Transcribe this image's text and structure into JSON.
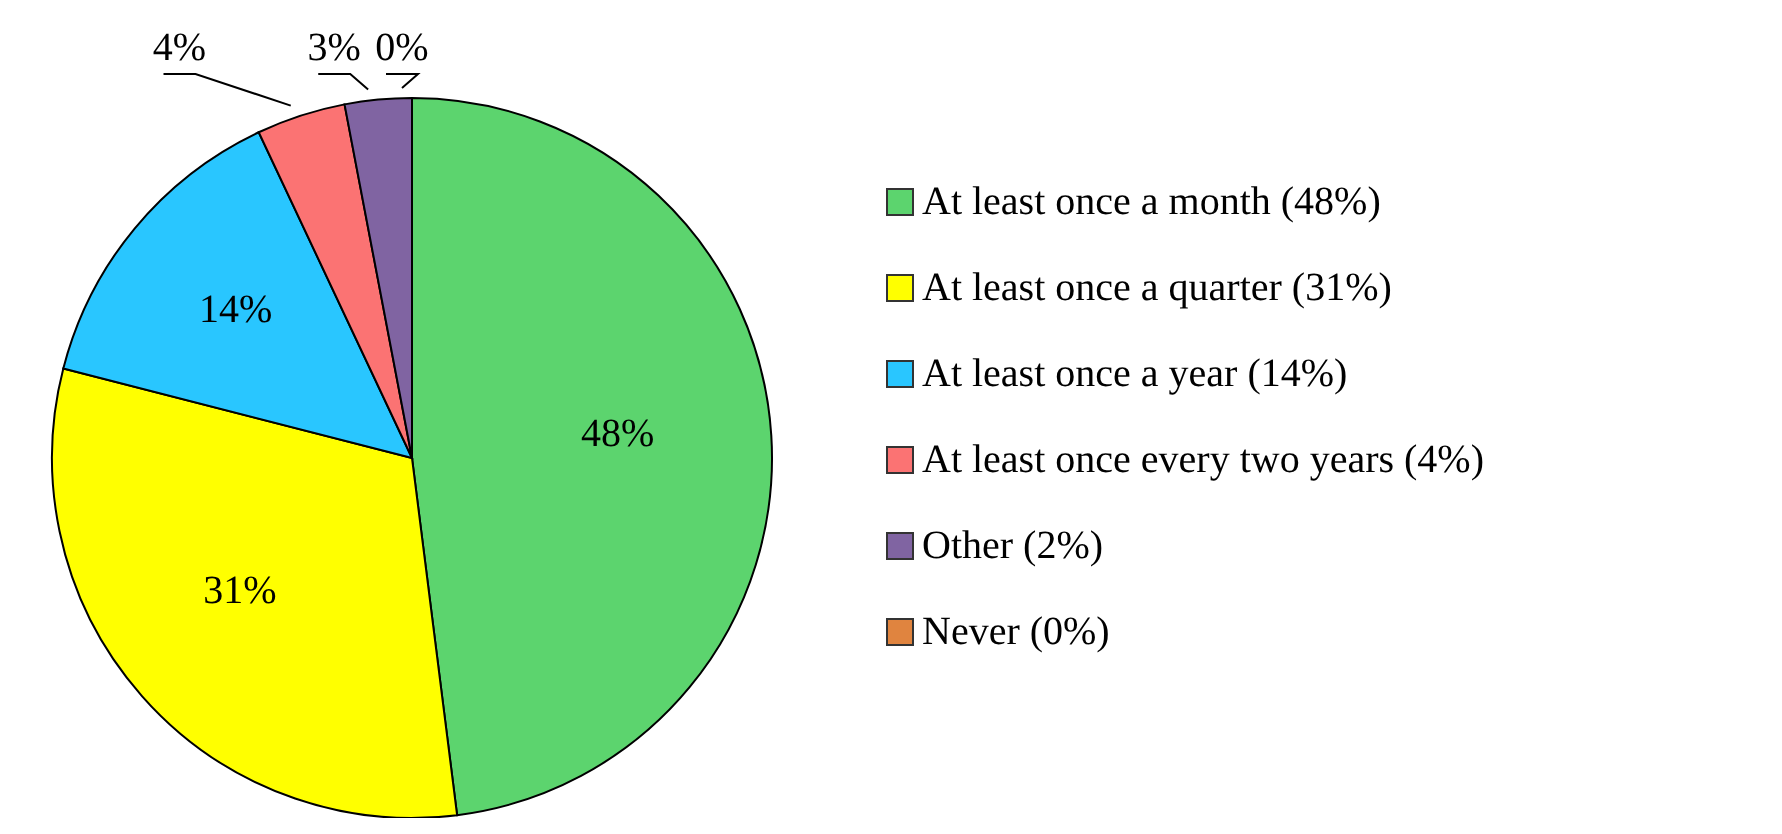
{
  "chart_data": {
    "type": "pie",
    "categories": [
      "At least once a month (48%)",
      "At least once a quarter (31%)",
      "At least once a year (14%)",
      "At least once every two years (4%)",
      "Other (2%)",
      "Never (0%)"
    ],
    "values": [
      48,
      31,
      14,
      4,
      3,
      0
    ],
    "colors": [
      "#5cd46e",
      "#ffff00",
      "#29c6ff",
      "#fb7373",
      "#8064a2",
      "#e0843f"
    ],
    "value_labels": [
      "48%",
      "31%",
      "14%",
      "4%",
      "3%",
      "0%"
    ],
    "legend": "right"
  }
}
